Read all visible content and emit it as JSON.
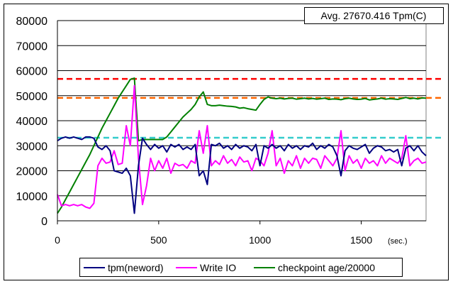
{
  "chart_data": {
    "type": "line",
    "annotation": "Avg. 27670.416 Tpm(C)",
    "xlabel": "(sec.)",
    "ylabel": "",
    "xlim": [
      0,
      1820
    ],
    "ylim": [
      0,
      80000
    ],
    "grid": true,
    "legend_position": "bottom",
    "x_ticks": [
      0,
      500,
      1000,
      1500
    ],
    "x_tick_labels": [
      "0",
      "500",
      "1000",
      "1500"
    ],
    "y_ticks": [
      0,
      10000,
      20000,
      30000,
      40000,
      50000,
      60000,
      70000,
      80000
    ],
    "y_tick_labels": [
      "0",
      "10000",
      "20000",
      "30000",
      "40000",
      "50000",
      "60000",
      "70000",
      "80000"
    ],
    "x_step": 20,
    "reference_lines": [
      {
        "value": 56700,
        "color": "#ff0000"
      },
      {
        "value": 49100,
        "color": "#ff6600"
      },
      {
        "value": 33200,
        "color": "#33cccc"
      }
    ],
    "series": [
      {
        "name": "tpm(neword)",
        "color": "#000080",
        "values": [
          32000,
          33000,
          33500,
          33000,
          33500,
          33000,
          32500,
          33500,
          33500,
          33000,
          29500,
          28500,
          30000,
          28000,
          20000,
          19500,
          19000,
          21000,
          18000,
          3000,
          22000,
          33000,
          30500,
          28500,
          30500,
          29000,
          30000,
          27500,
          30500,
          29500,
          30500,
          28500,
          29500,
          28500,
          30500,
          18000,
          20000,
          14500,
          30500,
          30000,
          31000,
          29000,
          30000,
          28500,
          30500,
          29000,
          30000,
          29500,
          28000,
          30500,
          22000,
          30000,
          29000,
          30500,
          29000,
          30000,
          28000,
          30500,
          29000,
          30000,
          28500,
          30000,
          29500,
          31000,
          28500,
          30000,
          29000,
          30500,
          29500,
          26000,
          18000,
          28000,
          30000,
          29000,
          28500,
          29500,
          30500,
          27000,
          29000,
          30000,
          29500,
          28000,
          28500,
          27500,
          28500,
          22000,
          29000,
          30000,
          28000,
          30000,
          27500,
          26000
        ]
      },
      {
        "name": "Write IO",
        "color": "#ff00ff",
        "values": [
          10500,
          6000,
          6500,
          6000,
          6500,
          6000,
          6500,
          5500,
          5000,
          7000,
          22000,
          25000,
          23000,
          23500,
          28000,
          22500,
          23000,
          38000,
          30000,
          54000,
          25000,
          6500,
          14000,
          25000,
          20000,
          24000,
          21000,
          25000,
          19000,
          23000,
          22000,
          22500,
          21000,
          24000,
          23000,
          36000,
          27000,
          38000,
          22000,
          24000,
          22500,
          26000,
          23000,
          24500,
          22000,
          25500,
          23500,
          24000,
          20000,
          25000,
          24000,
          22000,
          27000,
          36000,
          22000,
          25000,
          19000,
          24000,
          22000,
          26000,
          21000,
          25000,
          23000,
          25000,
          24500,
          21000,
          26000,
          24000,
          22000,
          25000,
          36000,
          20000,
          26000,
          23000,
          24500,
          21000,
          25000,
          23000,
          24000,
          22000,
          26000,
          23000,
          25000,
          24000,
          23000,
          25000,
          34000,
          22000,
          24000,
          25000,
          23000,
          23500
        ]
      },
      {
        "name": "checkpoint age/20000",
        "color": "#008000",
        "values": [
          3000,
          5500,
          8500,
          11500,
          14500,
          17500,
          20500,
          23500,
          26500,
          30000,
          33500,
          37000,
          40000,
          43000,
          46000,
          49000,
          51500,
          54000,
          56500,
          57000,
          32000,
          32500,
          32500,
          32500,
          32500,
          32500,
          32500,
          33500,
          35500,
          37500,
          39500,
          41500,
          43000,
          44500,
          46500,
          49500,
          51500,
          46500,
          46000,
          46000,
          46200,
          46000,
          45800,
          45700,
          45500,
          45000,
          45200,
          44800,
          44500,
          44200,
          46500,
          48500,
          49500,
          49000,
          48800,
          49000,
          48700,
          48900,
          49000,
          48600,
          48800,
          49000,
          48700,
          48900,
          48600,
          48800,
          49000,
          48500,
          48700,
          48600,
          48400,
          48800,
          49000,
          48700,
          48500,
          48600,
          48900,
          48300,
          48500,
          48700,
          49000,
          48600,
          48800,
          48700,
          48500,
          48900,
          49300,
          48800,
          49000,
          48700,
          49100,
          49000
        ]
      }
    ]
  }
}
